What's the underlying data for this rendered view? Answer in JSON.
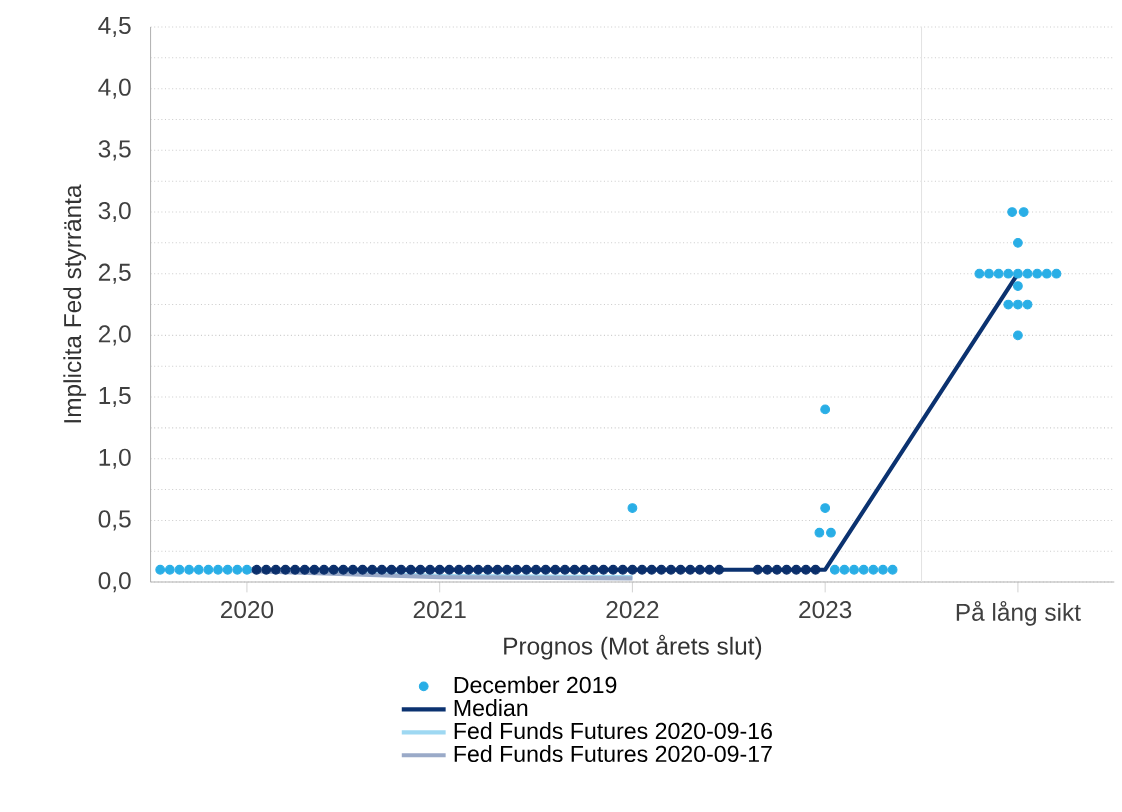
{
  "chart_data": {
    "type": "scatter",
    "xlabel": "Prognos (Mot årets slut)",
    "ylabel": "Implicita Fed styrränta",
    "xlim": [
      2019.5,
      2024.5
    ],
    "ylim": [
      0,
      4.5
    ],
    "xticks": [
      2020,
      2021,
      2022,
      2023,
      {
        "value": 2024,
        "label": "På lång sikt"
      }
    ],
    "yticks": [
      {
        "value": 0,
        "label": "0,0"
      },
      {
        "value": 0.25,
        "label": null
      },
      {
        "value": 0.5,
        "label": "0,5"
      },
      {
        "value": 0.75,
        "label": null
      },
      {
        "value": 1,
        "label": "1,0"
      },
      {
        "value": 1.25,
        "label": null
      },
      {
        "value": 1.5,
        "label": "1,5"
      },
      {
        "value": 1.75,
        "label": null
      },
      {
        "value": 2,
        "label": "2,0"
      },
      {
        "value": 2.25,
        "label": null
      },
      {
        "value": 2.5,
        "label": "2,5"
      },
      {
        "value": 2.75,
        "label": null
      },
      {
        "value": 3,
        "label": "3,0"
      },
      {
        "value": 3.25,
        "label": null
      },
      {
        "value": 3.5,
        "label": "3,5"
      },
      {
        "value": 3.75,
        "label": null
      },
      {
        "value": 4,
        "label": "4,0"
      },
      {
        "value": 4.25,
        "label": null
      },
      {
        "value": 4.5,
        "label": "4,5"
      }
    ],
    "grid": "y",
    "legend": "bottom",
    "marker": "circle",
    "ref_lines": [
      {
        "axis": "x",
        "value": 2023.5,
        "color": "#e3e3e3"
      }
    ],
    "series": [
      {
        "name": "December 2019",
        "color": "#29aee6",
        "x": [
          2019.55,
          2019.6,
          2019.65,
          2019.7,
          2019.75,
          2019.8,
          2019.85,
          2019.9,
          2019.95,
          2020.0,
          2023.05,
          2023.1,
          2023.15,
          2023.2,
          2023.25,
          2023.3,
          2023.35,
          2022.0,
          2023.0,
          2022.97,
          2023.03,
          2023.0,
          2023.97,
          2024.03,
          2024.0,
          2023.8,
          2023.85,
          2023.9,
          2023.95,
          2024.0,
          2024.05,
          2024.1,
          2024.15,
          2024.2,
          2024.0,
          2023.95,
          2024.0,
          2024.05,
          2024.0
        ],
        "values": [
          0.1,
          0.1,
          0.1,
          0.1,
          0.1,
          0.1,
          0.1,
          0.1,
          0.1,
          0.1,
          0.1,
          0.1,
          0.1,
          0.1,
          0.1,
          0.1,
          0.1,
          0.6,
          0.6,
          0.4,
          0.4,
          1.4,
          3.0,
          3.0,
          2.75,
          2.5,
          2.5,
          2.5,
          2.5,
          2.5,
          2.5,
          2.5,
          2.5,
          2.5,
          2.4,
          2.25,
          2.25,
          2.25,
          2.0
        ]
      },
      {
        "color": "#0b2f6b",
        "x": [
          2020.05,
          2020.1,
          2020.15,
          2020.2,
          2020.25,
          2020.3,
          2020.35,
          2020.4,
          2020.45,
          2020.5,
          2020.55,
          2020.6,
          2020.65,
          2020.7,
          2020.75,
          2020.8,
          2020.85,
          2020.9,
          2020.95,
          2021.0,
          2021.05,
          2021.1,
          2021.15,
          2021.2,
          2021.25,
          2021.3,
          2021.35,
          2021.4,
          2021.45,
          2021.5,
          2021.55,
          2021.6,
          2021.65,
          2021.7,
          2021.75,
          2021.8,
          2021.85,
          2021.9,
          2021.95,
          2022.0,
          2022.05,
          2022.1,
          2022.15,
          2022.2,
          2022.25,
          2022.3,
          2022.35,
          2022.4,
          2022.45,
          2022.65,
          2022.7,
          2022.75,
          2022.8,
          2022.85,
          2022.9,
          2022.95
        ],
        "values": [
          0.1,
          0.1,
          0.1,
          0.1,
          0.1,
          0.1,
          0.1,
          0.1,
          0.1,
          0.1,
          0.1,
          0.1,
          0.1,
          0.1,
          0.1,
          0.1,
          0.1,
          0.1,
          0.1,
          0.1,
          0.1,
          0.1,
          0.1,
          0.1,
          0.1,
          0.1,
          0.1,
          0.1,
          0.1,
          0.1,
          0.1,
          0.1,
          0.1,
          0.1,
          0.1,
          0.1,
          0.1,
          0.1,
          0.1,
          0.1,
          0.1,
          0.1,
          0.1,
          0.1,
          0.1,
          0.1,
          0.1,
          0.1,
          0.1,
          0.1,
          0.1,
          0.1,
          0.1,
          0.1,
          0.1,
          0.1
        ]
      },
      {
        "name": "Median",
        "type": "line",
        "marker": "none",
        "color": "#0b3270",
        "x": [
          2020,
          2021,
          2022,
          2023,
          2024
        ],
        "values": [
          0.1,
          0.1,
          0.1,
          0.1,
          2.5
        ]
      },
      {
        "name": "Fed Funds Futures 2020-09-16",
        "type": "line",
        "marker": "none",
        "color": "#9ed8f2",
        "x": [
          2020,
          2021,
          2022
        ],
        "values": [
          0.1,
          0.05,
          0.04
        ]
      },
      {
        "name": "Fed Funds Futures 2020-09-17",
        "type": "line",
        "marker": "none",
        "color": "#9aaac8",
        "x": [
          2020,
          2021,
          2022
        ],
        "values": [
          0.09,
          0.04,
          0.03
        ]
      }
    ]
  }
}
